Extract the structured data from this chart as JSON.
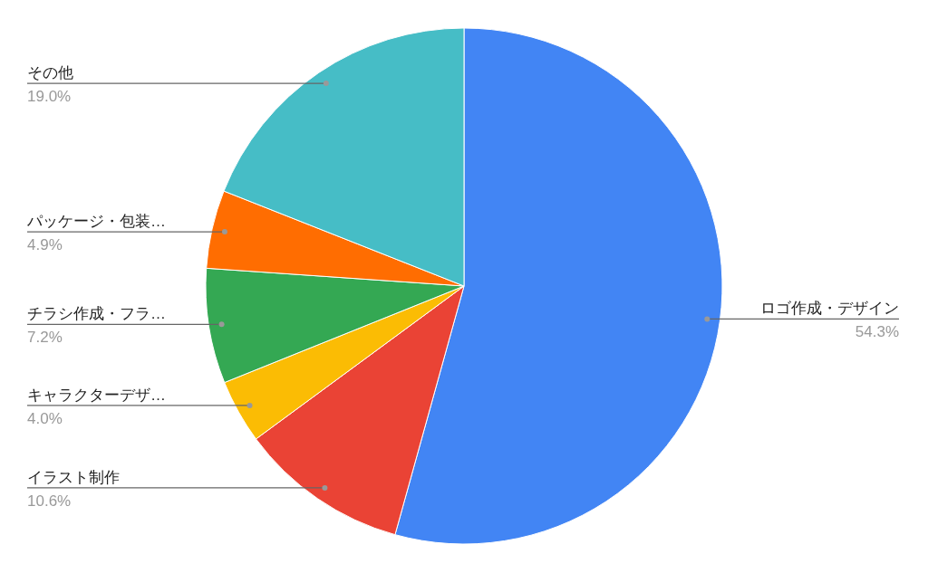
{
  "chart_data": {
    "type": "pie",
    "categories": [
      "ロゴ作成・デザイン",
      "イラスト制作",
      "キャラクターデザ…",
      "チラシ作成・フラ…",
      "パッケージ・包装…",
      "その他"
    ],
    "values": [
      54.3,
      10.6,
      4.0,
      7.2,
      4.9,
      19.0
    ],
    "colors": [
      "#4285f4",
      "#ea4335",
      "#fbbc04",
      "#34a853",
      "#ff6d01",
      "#46bdc6"
    ],
    "value_labels": [
      "54.3%",
      "10.6%",
      "4.0%",
      "7.2%",
      "4.9%",
      "19.0%"
    ]
  }
}
